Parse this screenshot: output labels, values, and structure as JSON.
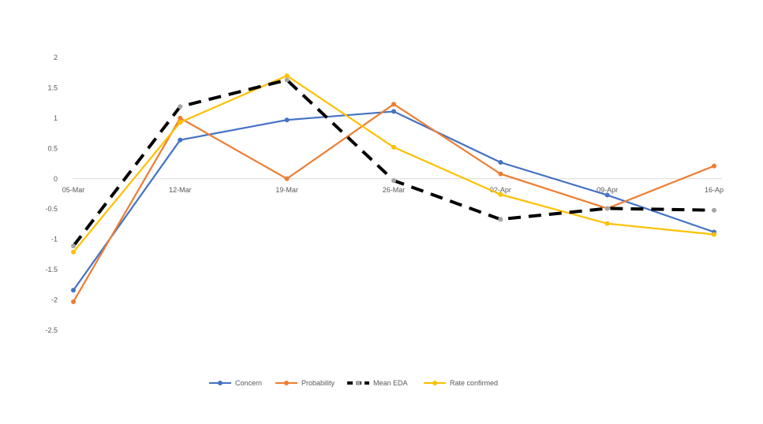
{
  "chart_data": {
    "type": "line",
    "title": "",
    "xlabel": "",
    "ylabel": "",
    "categories": [
      "05-Mar",
      "12-Mar",
      "19-Mar",
      "26-Mar",
      "02-Apr",
      "09-Apr",
      "16-Ap"
    ],
    "ylim": [
      -2.5,
      2
    ],
    "yticks": [
      2,
      1.5,
      1,
      0.5,
      0,
      -0.5,
      -1,
      -1.5,
      -2,
      -2.5
    ],
    "grid": false,
    "legend_position": "bottom",
    "series": [
      {
        "name": "Concern",
        "color": "#4472C4",
        "dashed": false,
        "values": [
          -1.84,
          0.64,
          0.97,
          1.11,
          0.27,
          -0.27,
          -0.88
        ]
      },
      {
        "name": "Probability",
        "color": "#ED7D31",
        "dashed": false,
        "values": [
          -2.03,
          1.0,
          0.0,
          1.23,
          0.08,
          -0.49,
          0.21
        ]
      },
      {
        "name": "Mean EDA",
        "color": "#000000",
        "marker_color": "#A5A5A5",
        "dashed": true,
        "values": [
          -1.11,
          1.19,
          1.63,
          -0.03,
          -0.67,
          -0.49,
          -0.52
        ]
      },
      {
        "name": "Rate confirmed",
        "color": "#FFC000",
        "dashed": false,
        "values": [
          -1.21,
          0.93,
          1.7,
          0.52,
          -0.26,
          -0.74,
          -0.92
        ]
      }
    ]
  }
}
